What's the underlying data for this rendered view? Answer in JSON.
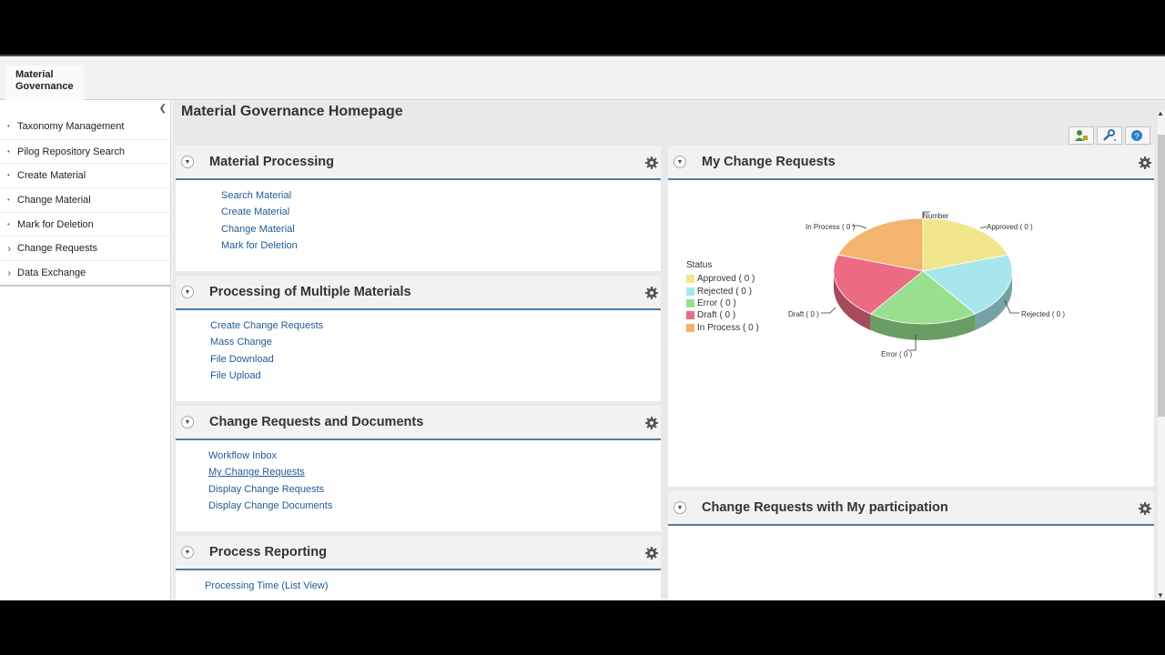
{
  "navtab": {
    "label": "Material Governance"
  },
  "sidebar": {
    "items": [
      {
        "label": "Taxonomy Management",
        "marker": "•"
      },
      {
        "label": "Pilog Repository Search",
        "marker": "•"
      },
      {
        "label": "Create Material",
        "marker": "•"
      },
      {
        "label": "Change Material",
        "marker": "•"
      },
      {
        "label": "Mark for Deletion",
        "marker": "•"
      },
      {
        "label": "Change Requests",
        "marker": "›"
      },
      {
        "label": "Data Exchange",
        "marker": "›"
      }
    ]
  },
  "page": {
    "title": "Material Governance Homepage"
  },
  "panels": {
    "material_processing": {
      "title": "Material Processing",
      "links": [
        "Search Material",
        "Create Material",
        "Change Material",
        "Mark for Deletion"
      ]
    },
    "multiple_materials": {
      "title": "Processing of Multiple Materials",
      "links": [
        "Create Change Requests",
        "Mass Change",
        "File Download",
        "File Upload"
      ]
    },
    "cr_documents": {
      "title": "Change Requests and Documents",
      "links": [
        "Workflow Inbox",
        "My Change Requests",
        "Display Change Requests",
        "Display Change Documents"
      ]
    },
    "process_reporting": {
      "title": "Process Reporting",
      "links": [
        "Processing Time (List View)"
      ]
    },
    "my_change_requests": {
      "title": "My Change Requests"
    },
    "participation": {
      "title": "Change Requests with My participation"
    }
  },
  "chart_data": {
    "type": "pie",
    "legend_title": "Status",
    "header_label": "Number",
    "slices": [
      {
        "name": "Approved ( 0 )",
        "label": "Approved ( 0 )",
        "value": 0,
        "color": "#f0e68c"
      },
      {
        "name": "Rejected ( 0 )",
        "label": "Rejected ( 0 )",
        "value": 0,
        "color": "#a8e6ee"
      },
      {
        "name": "Error ( 0 )",
        "label": "Error ( 0 )",
        "value": 0,
        "color": "#98e08e"
      },
      {
        "name": "Draft ( 0 )",
        "label": "Draft ( 0 )",
        "value": 0,
        "color": "#ec6b83"
      },
      {
        "name": "In Process ( 0 )",
        "label": "In Process ( 0 )",
        "value": 0,
        "color": "#f2b46e"
      }
    ],
    "legend_placement": "left"
  }
}
